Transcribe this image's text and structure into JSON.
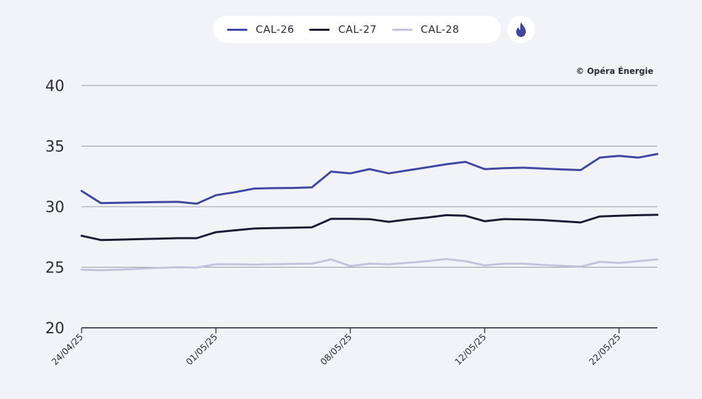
{
  "legend": {
    "items": [
      {
        "label": "CAL-26",
        "color": "#3f47a0"
      },
      {
        "label": "CAL-27",
        "color": "#1b1a33"
      },
      {
        "label": "CAL-28",
        "color": "#c3c3df"
      }
    ],
    "icon": "flame-icon"
  },
  "credit": "© Opéra Énergie",
  "chart_data": {
    "type": "line",
    "xlabel": "",
    "ylabel": "",
    "ylim": [
      20,
      40
    ],
    "yticks": [
      20,
      25,
      30,
      35,
      40
    ],
    "x_tick_labels": [
      "24/04/25",
      "01/05/25",
      "08/05/25",
      "12/05/25",
      "22/05/25"
    ],
    "x_tick_indices": [
      0,
      7,
      14,
      21,
      28
    ],
    "grid": true,
    "series": [
      {
        "name": "CAL-26",
        "color": "#3f47a0",
        "values": [
          31.3,
          30.3,
          30.33,
          30.35,
          30.38,
          30.4,
          30.25,
          30.95,
          31.2,
          31.5,
          31.53,
          31.55,
          31.6,
          32.9,
          32.75,
          33.1,
          32.75,
          33.0,
          33.25,
          33.5,
          33.7,
          33.1,
          33.18,
          33.22,
          33.15,
          33.08,
          33.02,
          34.05,
          34.2,
          34.05,
          34.35
        ]
      },
      {
        "name": "CAL-27",
        "color": "#1b1a33",
        "values": [
          27.6,
          27.25,
          27.28,
          27.32,
          27.36,
          27.4,
          27.4,
          27.9,
          28.05,
          28.2,
          28.23,
          28.26,
          28.3,
          29.0,
          29.0,
          28.97,
          28.75,
          28.95,
          29.1,
          29.3,
          29.25,
          28.8,
          28.98,
          28.95,
          28.9,
          28.8,
          28.7,
          29.2,
          29.25,
          29.3,
          29.33
        ]
      },
      {
        "name": "CAL-28",
        "color": "#c3c3df",
        "values": [
          24.8,
          24.75,
          24.8,
          24.88,
          24.95,
          25.0,
          24.97,
          25.25,
          25.25,
          25.22,
          25.25,
          25.28,
          25.3,
          25.65,
          25.1,
          25.3,
          25.25,
          25.37,
          25.5,
          25.68,
          25.5,
          25.15,
          25.3,
          25.3,
          25.2,
          25.12,
          25.05,
          25.45,
          25.35,
          25.5,
          25.65
        ]
      }
    ]
  }
}
